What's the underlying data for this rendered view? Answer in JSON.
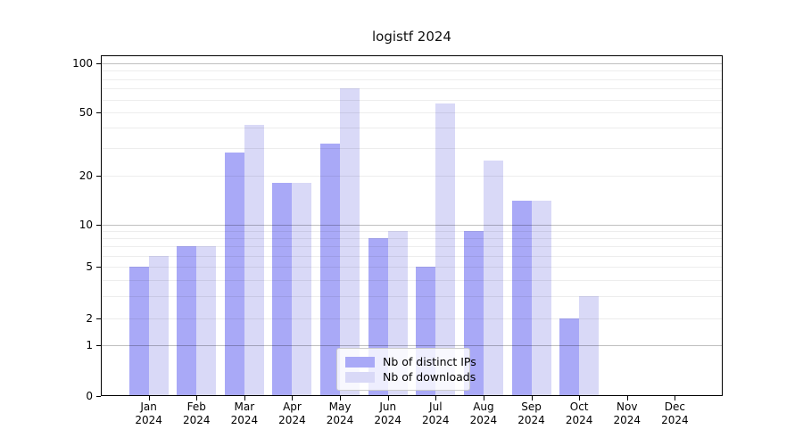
{
  "title": "logistf 2024",
  "chart_data": {
    "type": "bar",
    "title": "logistf 2024",
    "categories": [
      "Jan",
      "Feb",
      "Mar",
      "Apr",
      "May",
      "Jun",
      "Jul",
      "Aug",
      "Sep",
      "Oct",
      "Nov",
      "Dec"
    ],
    "x_year_label": "2024",
    "series": [
      {
        "name": "Nb of distinct IPs",
        "color": "#a9a9f7",
        "values": [
          5,
          7,
          28,
          18,
          32,
          8,
          5,
          9,
          14,
          2,
          0,
          0
        ]
      },
      {
        "name": "Nb of downloads",
        "color": "#d9d9f7",
        "values": [
          6,
          7,
          42,
          18,
          70,
          9,
          57,
          25,
          14,
          3,
          0,
          0
        ]
      }
    ],
    "y_ticks": [
      0,
      1,
      2,
      5,
      10,
      20,
      50,
      100
    ],
    "y_minor_gridlines": [
      2,
      3,
      4,
      5,
      6,
      7,
      8,
      9,
      20,
      30,
      40,
      50,
      60,
      70,
      80,
      90
    ],
    "y_major_gridlines": [
      1,
      10,
      100
    ],
    "y_scale": "log-like",
    "ylim": [
      0,
      110
    ],
    "grid": "horizontal",
    "legend_position": "inside-bottom-center",
    "axis_color": "#000000",
    "background_color": "#ffffff"
  }
}
